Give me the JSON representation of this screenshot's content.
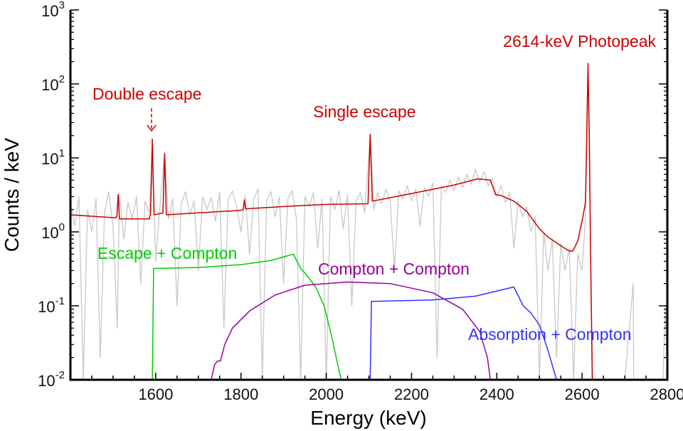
{
  "chart_data": {
    "type": "line",
    "title": "",
    "xlabel": "Energy (keV)",
    "ylabel": "Counts / keV",
    "xlim": [
      1400,
      2800
    ],
    "ylim": [
      0.01,
      1000
    ],
    "yscale": "log",
    "grid": false,
    "x_ticks": [
      1600,
      1800,
      2000,
      2200,
      2400,
      2600,
      2800
    ],
    "x_tick_labels": [
      "1600",
      "1800",
      "2000",
      "2200",
      "2400",
      "2600",
      "2800"
    ],
    "y_ticks": [
      {
        "base": "10",
        "exp": "-2",
        "value": 0.01
      },
      {
        "base": "10",
        "exp": "-1",
        "value": 0.1
      },
      {
        "base": "10",
        "exp": "0",
        "value": 1
      },
      {
        "base": "10",
        "exp": "1",
        "value": 10
      },
      {
        "base": "10",
        "exp": "2",
        "value": 100
      },
      {
        "base": "10",
        "exp": "3",
        "value": 1000
      }
    ],
    "series": [
      {
        "key": "measured",
        "color": "#c8c8c8",
        "points": [
          [
            1400,
            2.5
          ],
          [
            1410,
            1.2
          ],
          [
            1420,
            3.0
          ],
          [
            1430,
            0.01
          ],
          [
            1440,
            2.0
          ],
          [
            1450,
            1.0
          ],
          [
            1460,
            2.8
          ],
          [
            1470,
            0.02
          ],
          [
            1480,
            1.8
          ],
          [
            1490,
            3.5
          ],
          [
            1500,
            1.2
          ],
          [
            1510,
            0.05
          ],
          [
            1515,
            3.2
          ],
          [
            1525,
            0.8
          ],
          [
            1535,
            2.5
          ],
          [
            1545,
            1.5
          ],
          [
            1555,
            3.0
          ],
          [
            1565,
            0.2
          ],
          [
            1575,
            2.6
          ],
          [
            1585,
            1.8
          ],
          [
            1592,
            15
          ],
          [
            1600,
            0.4
          ],
          [
            1610,
            2.2
          ],
          [
            1621,
            12
          ],
          [
            1630,
            1.5
          ],
          [
            1640,
            2.8
          ],
          [
            1650,
            0.1
          ],
          [
            1660,
            2.4
          ],
          [
            1670,
            3.5
          ],
          [
            1680,
            1.7
          ],
          [
            1690,
            2.6
          ],
          [
            1700,
            0.3
          ],
          [
            1710,
            3.0
          ],
          [
            1720,
            2.0
          ],
          [
            1730,
            2.9
          ],
          [
            1740,
            1.4
          ],
          [
            1750,
            3.4
          ],
          [
            1760,
            0.05
          ],
          [
            1770,
            2.7
          ],
          [
            1780,
            3.6
          ],
          [
            1790,
            2.2
          ],
          [
            1800,
            1.0
          ],
          [
            1810,
            3.1
          ],
          [
            1820,
            0.5
          ],
          [
            1830,
            2.8
          ],
          [
            1840,
            3.8
          ],
          [
            1850,
            0.01
          ],
          [
            1860,
            2.6
          ],
          [
            1870,
            3.5
          ],
          [
            1880,
            1.6
          ],
          [
            1890,
            3.0
          ],
          [
            1900,
            0.2
          ],
          [
            1910,
            2.8
          ],
          [
            1920,
            3.6
          ],
          [
            1930,
            1.5
          ],
          [
            1940,
            0.01
          ],
          [
            1950,
            3.0
          ],
          [
            1960,
            2.2
          ],
          [
            1970,
            3.4
          ],
          [
            1980,
            0.6
          ],
          [
            1990,
            2.8
          ],
          [
            2000,
            0.01
          ],
          [
            2010,
            3.0
          ],
          [
            2020,
            2.0
          ],
          [
            2030,
            3.6
          ],
          [
            2040,
            1.1
          ],
          [
            2050,
            3.2
          ],
          [
            2060,
            0.1
          ],
          [
            2070,
            2.6
          ],
          [
            2080,
            3.4
          ],
          [
            2090,
            1.8
          ],
          [
            2103,
            20
          ],
          [
            2112,
            2.0
          ],
          [
            2120,
            3.4
          ],
          [
            2130,
            2.4
          ],
          [
            2140,
            3.8
          ],
          [
            2150,
            2.6
          ],
          [
            2160,
            0.3
          ],
          [
            2170,
            3.6
          ],
          [
            2180,
            2.8
          ],
          [
            2190,
            4.2
          ],
          [
            2200,
            2.6
          ],
          [
            2210,
            3.8
          ],
          [
            2220,
            1.2
          ],
          [
            2230,
            4.0
          ],
          [
            2240,
            3.0
          ],
          [
            2250,
            4.6
          ],
          [
            2260,
            0.02
          ],
          [
            2270,
            4.2
          ],
          [
            2280,
            3.4
          ],
          [
            2290,
            5.0
          ],
          [
            2300,
            3.6
          ],
          [
            2310,
            5.5
          ],
          [
            2320,
            4.0
          ],
          [
            2330,
            6.0
          ],
          [
            2340,
            4.4
          ],
          [
            2350,
            7.0
          ],
          [
            2360,
            4.8
          ],
          [
            2370,
            6.5
          ],
          [
            2380,
            4.2
          ],
          [
            2390,
            5.2
          ],
          [
            2400,
            3.0
          ],
          [
            2410,
            4.2
          ],
          [
            2420,
            2.5
          ],
          [
            2430,
            3.4
          ],
          [
            2440,
            0.6
          ],
          [
            2450,
            2.6
          ],
          [
            2460,
            1.6
          ],
          [
            2470,
            2.2
          ],
          [
            2480,
            1.0
          ],
          [
            2490,
            1.6
          ],
          [
            2500,
            0.01
          ],
          [
            2510,
            1.0
          ],
          [
            2520,
            0.3
          ],
          [
            2530,
            0.8
          ],
          [
            2540,
            0.02
          ],
          [
            2550,
            0.7
          ],
          [
            2560,
            0.3
          ],
          [
            2570,
            0.6
          ],
          [
            2580,
            0.01
          ],
          [
            2590,
            0.5
          ],
          [
            2600,
            0.3
          ],
          [
            2608,
            1.5
          ],
          [
            2614,
            150
          ],
          [
            2620,
            0.5
          ],
          [
            2625,
            0.01
          ],
          [
            2700,
            0.01
          ],
          [
            2720,
            0.2
          ],
          [
            2721,
            0.01
          ],
          [
            2790,
            0.01
          ],
          [
            2795,
            0.1
          ],
          [
            2800,
            0.01
          ]
        ]
      },
      {
        "key": "model",
        "color": "#cc0000",
        "points": [
          [
            1400,
            1.7
          ],
          [
            1505,
            1.55
          ],
          [
            1509,
            1.6
          ],
          [
            1512,
            3.2
          ],
          [
            1515,
            1.5
          ],
          [
            1585,
            1.5
          ],
          [
            1588,
            1.8
          ],
          [
            1592,
            18
          ],
          [
            1596,
            1.7
          ],
          [
            1617,
            1.8
          ],
          [
            1621,
            11.5
          ],
          [
            1625,
            1.7
          ],
          [
            1800,
            1.95
          ],
          [
            1805,
            2.0
          ],
          [
            1808,
            2.7
          ],
          [
            1811,
            2.05
          ],
          [
            1900,
            2.2
          ],
          [
            2000,
            2.35
          ],
          [
            2098,
            2.4
          ],
          [
            2103,
            21
          ],
          [
            2108,
            2.6
          ],
          [
            2200,
            3.3
          ],
          [
            2300,
            4.3
          ],
          [
            2355,
            5.2
          ],
          [
            2385,
            5.0
          ],
          [
            2397,
            3.2
          ],
          [
            2410,
            3.1
          ],
          [
            2440,
            2.6
          ],
          [
            2470,
            1.9
          ],
          [
            2500,
            1.1
          ],
          [
            2520,
            0.85
          ],
          [
            2550,
            0.65
          ],
          [
            2570,
            0.55
          ],
          [
            2578,
            0.55
          ],
          [
            2590,
            0.75
          ],
          [
            2602,
            1.6
          ],
          [
            2608,
            2.5
          ],
          [
            2611,
            20
          ],
          [
            2614,
            190
          ],
          [
            2617,
            20
          ],
          [
            2620,
            0.5
          ],
          [
            2624,
            0.01
          ]
        ]
      },
      {
        "key": "escape-compton",
        "name": "Escape + Compton",
        "color": "#00cc00",
        "points": [
          [
            1592,
            0.01
          ],
          [
            1595,
            0.32
          ],
          [
            1700,
            0.33
          ],
          [
            1800,
            0.36
          ],
          [
            1870,
            0.41
          ],
          [
            1923,
            0.5
          ],
          [
            1940,
            0.32
          ],
          [
            1952,
            0.27
          ],
          [
            1975,
            0.18
          ],
          [
            1995,
            0.1
          ],
          [
            2012,
            0.04
          ],
          [
            2025,
            0.018
          ],
          [
            2035,
            0.01
          ]
        ]
      },
      {
        "key": "compton-compton",
        "name": "Compton + Compton",
        "color": "#990099",
        "points": [
          [
            1730,
            0.01
          ],
          [
            1738,
            0.016
          ],
          [
            1745,
            0.018
          ],
          [
            1752,
            0.018
          ],
          [
            1762,
            0.03
          ],
          [
            1780,
            0.05
          ],
          [
            1820,
            0.085
          ],
          [
            1880,
            0.14
          ],
          [
            1950,
            0.19
          ],
          [
            2050,
            0.21
          ],
          [
            2150,
            0.2
          ],
          [
            2250,
            0.15
          ],
          [
            2320,
            0.09
          ],
          [
            2360,
            0.045
          ],
          [
            2378,
            0.02
          ],
          [
            2385,
            0.01
          ]
        ]
      },
      {
        "key": "absorption-compton",
        "name": "Absorption + Compton",
        "color": "#3333ff",
        "points": [
          [
            2103,
            0.01
          ],
          [
            2106,
            0.115
          ],
          [
            2250,
            0.12
          ],
          [
            2350,
            0.135
          ],
          [
            2440,
            0.18
          ],
          [
            2462,
            0.1
          ],
          [
            2480,
            0.08
          ],
          [
            2500,
            0.055
          ],
          [
            2520,
            0.025
          ],
          [
            2540,
            0.01
          ]
        ]
      }
    ],
    "annotations": [
      {
        "key": "photopeak",
        "text": "2614-keV Photopeak",
        "color": "#cc0000"
      },
      {
        "key": "double",
        "text": "Double escape",
        "color": "#cc0000"
      },
      {
        "key": "single",
        "text": "Single escape",
        "color": "#cc0000"
      },
      {
        "key": "escape-compton",
        "text": "Escape + Compton",
        "color": "#00cc00"
      },
      {
        "key": "compton-compton",
        "text": "Compton + Compton",
        "color": "#990099"
      },
      {
        "key": "absorption-compton",
        "text": "Absorption + Compton",
        "color": "#3333ff"
      }
    ]
  }
}
